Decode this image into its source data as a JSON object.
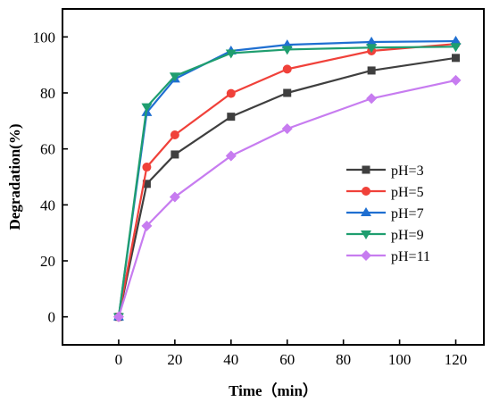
{
  "chart_data": {
    "type": "line",
    "title": "",
    "xlabel": "Time（min）",
    "ylabel": "Degradation(%)",
    "xlim": [
      -20,
      130
    ],
    "ylim": [
      -10,
      110
    ],
    "xticks": [
      0,
      20,
      40,
      60,
      80,
      100,
      120
    ],
    "yticks": [
      0,
      20,
      40,
      60,
      80,
      100
    ],
    "grid": false,
    "legend_position": "center-right",
    "x": [
      0,
      10,
      20,
      40,
      60,
      90,
      120
    ],
    "series": [
      {
        "name": "pH=3",
        "color": "#3f3f3f",
        "marker": "square",
        "values": [
          0,
          47.5,
          58,
          71.5,
          80,
          88,
          92.5
        ]
      },
      {
        "name": "pH=5",
        "color": "#f0413a",
        "marker": "circle",
        "values": [
          0,
          53.5,
          65,
          79.8,
          88.5,
          95,
          97.5
        ]
      },
      {
        "name": "pH=7",
        "color": "#1f6fd1",
        "marker": "triangle-up",
        "values": [
          0,
          73,
          85,
          95,
          97.2,
          98.2,
          98.5
        ]
      },
      {
        "name": "pH=9",
        "color": "#1f9e6f",
        "marker": "triangle-down",
        "values": [
          0,
          75,
          86,
          94.2,
          95.5,
          96.2,
          96.5
        ]
      },
      {
        "name": "pH=11",
        "color": "#c77cf0",
        "marker": "diamond",
        "values": [
          0,
          32.5,
          42.8,
          57.5,
          67.2,
          78,
          84.5
        ]
      }
    ]
  }
}
